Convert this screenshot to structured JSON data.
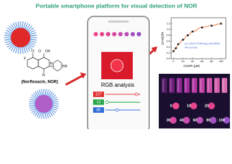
{
  "title": "Portable smartphone platform for visual detection of NOR",
  "molecule": {
    "label": "(Norfloxacin, NOR)",
    "atoms": [
      "F",
      "O",
      "O",
      "OH",
      "N",
      "N",
      "NH"
    ]
  },
  "phone": {
    "caption": "RGB analysis",
    "rgb": [
      227,
      12,
      85
    ]
  },
  "chart_data": {
    "type": "scatter",
    "x_label": "CNOR (μM)",
    "y_label": "(G+B)/2R",
    "annotations": [
      "y=1.234-0.9735*exp(-x/34.6541)",
      "R²=0.9790"
    ],
    "x": [
      0,
      5,
      10,
      20,
      30,
      40,
      60,
      80,
      100
    ],
    "values": [
      0.26,
      0.36,
      0.5,
      0.65,
      0.8,
      0.93,
      1.07,
      1.13,
      1.2
    ],
    "color": "#1a1a1a",
    "fit_color": "#e8652a",
    "xlim": [
      -5,
      110
    ],
    "ylim": [
      0,
      1.4
    ],
    "xticks": [
      0,
      20,
      40,
      60,
      80,
      100
    ],
    "yticks": [
      {
        "value": 0,
        "label": "0.0"
      },
      {
        "value": 0.2,
        "label": "0.2"
      },
      {
        "value": 0.4,
        "label": "0.4"
      },
      {
        "value": 0.6,
        "label": "0.6"
      },
      {
        "value": 0.8,
        "label": "0.8"
      },
      {
        "value": 1,
        "label": "1.0"
      },
      {
        "value": 1.2,
        "label": "1.2"
      }
    ]
  },
  "photo": {
    "concentrations": [
      0,
      10,
      20,
      30,
      40,
      60,
      80,
      100
    ]
  }
}
